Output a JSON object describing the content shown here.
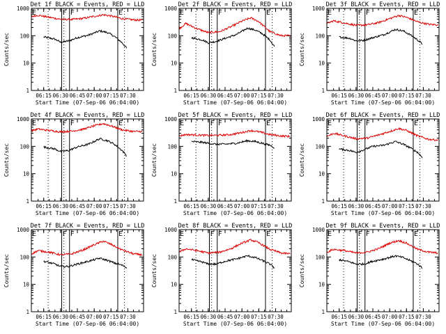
{
  "figure": {
    "start_time_label": "Start Time (07-Sep-06 06:04:00)",
    "ylabel": "Counts/sec"
  },
  "chart_data": [
    {
      "type": "line",
      "title": "Det 1f BLACK = Events, RED = LLD",
      "xlabel": "Start Time (07-Sep-06 06:04:00)",
      "ylabel": "Counts/sec",
      "yscale": "log",
      "ylim": [
        1,
        1000
      ],
      "y_ticks": [
        "1",
        "10",
        "100",
        "1000"
      ],
      "xlim": [
        "06:04",
        "07:44"
      ],
      "x_ticks": [
        "06:15",
        "06:30",
        "06:45",
        "07:00",
        "07:15",
        "07:30"
      ],
      "vertical_markers": [
        {
          "label": "E",
          "time": "06:04"
        },
        {
          "label": "F",
          "time": "06:31"
        },
        {
          "label": "F",
          "time": "06:38"
        },
        {
          "label": "E",
          "time": "07:21"
        }
      ],
      "dotted_markers": [
        "06:19",
        "06:33",
        "07:27"
      ],
      "series": [
        {
          "name": "Events",
          "color": "#000000",
          "x": [
            "06:15",
            "06:25",
            "06:30",
            "06:37",
            "06:45",
            "06:55",
            "07:05",
            "07:12",
            "07:18",
            "07:25",
            "07:29"
          ],
          "y": [
            90,
            75,
            58,
            64,
            85,
            105,
            150,
            130,
            95,
            55,
            35
          ]
        },
        {
          "name": "LLD",
          "color": "#dd0000",
          "x": [
            "06:04",
            "06:10",
            "06:20",
            "06:30",
            "06:40",
            "06:50",
            "07:00",
            "07:08",
            "07:15",
            "07:25",
            "07:35",
            "07:43"
          ],
          "y": [
            500,
            560,
            470,
            400,
            390,
            430,
            510,
            580,
            530,
            420,
            380,
            370
          ]
        }
      ]
    },
    {
      "type": "line",
      "title": "Det 2f BLACK = Events, RED = LLD",
      "xlabel": "Start Time (07-Sep-06 06:04:00)",
      "ylabel": "Counts/sec",
      "yscale": "log",
      "ylim": [
        1,
        1000
      ],
      "y_ticks": [
        "1",
        "10",
        "100",
        "1000"
      ],
      "xlim": [
        "06:04",
        "07:44"
      ],
      "x_ticks": [
        "06:15",
        "06:30",
        "06:45",
        "07:00",
        "07:15",
        "07:30"
      ],
      "vertical_markers": [
        {
          "label": "E",
          "time": "06:04"
        },
        {
          "label": "F",
          "time": "06:31"
        },
        {
          "label": "F",
          "time": "06:38"
        },
        {
          "label": "E",
          "time": "07:21"
        }
      ],
      "dotted_markers": [
        "06:19",
        "06:33",
        "07:27"
      ],
      "series": [
        {
          "name": "Events",
          "color": "#000000",
          "x": [
            "06:15",
            "06:25",
            "06:30",
            "06:37",
            "06:45",
            "06:55",
            "07:05",
            "07:12",
            "07:18",
            "07:25",
            "07:29"
          ],
          "y": [
            85,
            70,
            55,
            62,
            80,
            110,
            190,
            160,
            120,
            70,
            40
          ]
        },
        {
          "name": "LLD",
          "color": "#dd0000",
          "x": [
            "06:04",
            "06:10",
            "06:20",
            "06:30",
            "06:40",
            "06:50",
            "07:00",
            "07:08",
            "07:15",
            "07:25",
            "07:35",
            "07:43"
          ],
          "y": [
            180,
            280,
            180,
            130,
            140,
            210,
            340,
            450,
            330,
            140,
            100,
            100
          ]
        }
      ]
    },
    {
      "type": "line",
      "title": "Det 3f BLACK = Events, RED = LLD",
      "xlabel": "Start Time (07-Sep-06 06:04:00)",
      "ylabel": "Counts/sec",
      "yscale": "log",
      "ylim": [
        1,
        1000
      ],
      "y_ticks": [
        "1",
        "10",
        "100",
        "1000"
      ],
      "xlim": [
        "06:04",
        "07:44"
      ],
      "x_ticks": [
        "06:15",
        "06:30",
        "06:45",
        "07:00",
        "07:15",
        "07:30"
      ],
      "vertical_markers": [
        {
          "label": "E",
          "time": "06:04"
        },
        {
          "label": "F",
          "time": "06:31"
        },
        {
          "label": "F",
          "time": "06:38"
        },
        {
          "label": "E",
          "time": "07:21"
        }
      ],
      "dotted_markers": [
        "06:19",
        "06:33",
        "07:27"
      ],
      "series": [
        {
          "name": "Events",
          "color": "#000000",
          "x": [
            "06:15",
            "06:25",
            "06:30",
            "06:37",
            "06:45",
            "06:55",
            "07:05",
            "07:12",
            "07:18",
            "07:25",
            "07:29"
          ],
          "y": [
            90,
            80,
            65,
            68,
            85,
            110,
            170,
            150,
            110,
            70,
            50
          ]
        },
        {
          "name": "LLD",
          "color": "#dd0000",
          "x": [
            "06:04",
            "06:10",
            "06:20",
            "06:30",
            "06:40",
            "06:50",
            "07:00",
            "07:08",
            "07:15",
            "07:25",
            "07:35",
            "07:43"
          ],
          "y": [
            280,
            350,
            290,
            240,
            250,
            300,
            420,
            550,
            470,
            320,
            260,
            250
          ]
        }
      ]
    },
    {
      "type": "line",
      "title": "Det 4f BLACK = Events, RED = LLD",
      "xlabel": "Start Time (07-Sep-06 06:04:00)",
      "ylabel": "Counts/sec",
      "yscale": "log",
      "ylim": [
        1,
        1000
      ],
      "y_ticks": [
        "1",
        "10",
        "100",
        "1000"
      ],
      "xlim": [
        "06:04",
        "07:44"
      ],
      "x_ticks": [
        "06:15",
        "06:30",
        "06:45",
        "07:00",
        "07:15",
        "07:30"
      ],
      "vertical_markers": [
        {
          "label": "E",
          "time": "06:04"
        },
        {
          "label": "F",
          "time": "06:31"
        },
        {
          "label": "F",
          "time": "06:38"
        },
        {
          "label": "E",
          "time": "07:21"
        }
      ],
      "dotted_markers": [
        "06:19",
        "06:33",
        "07:27"
      ],
      "series": [
        {
          "name": "Events",
          "color": "#000000",
          "x": [
            "06:15",
            "06:25",
            "06:30",
            "06:37",
            "06:45",
            "06:55",
            "07:05",
            "07:12",
            "07:18",
            "07:25",
            "07:29"
          ],
          "y": [
            95,
            80,
            65,
            70,
            95,
            120,
            190,
            160,
            120,
            70,
            45
          ]
        },
        {
          "name": "LLD",
          "color": "#dd0000",
          "x": [
            "06:04",
            "06:10",
            "06:20",
            "06:30",
            "06:40",
            "06:50",
            "07:00",
            "07:08",
            "07:15",
            "07:25",
            "07:35",
            "07:43"
          ],
          "y": [
            370,
            430,
            380,
            340,
            360,
            420,
            560,
            680,
            560,
            400,
            350,
            350
          ]
        }
      ]
    },
    {
      "type": "line",
      "title": "Det 5f BLACK = Events, RED = LLD",
      "xlabel": "Start Time (07-Sep-06 06:04:00)",
      "ylabel": "Counts/sec",
      "yscale": "log",
      "ylim": [
        1,
        1000
      ],
      "y_ticks": [
        "1",
        "10",
        "100",
        "1000"
      ],
      "xlim": [
        "06:04",
        "07:44"
      ],
      "x_ticks": [
        "06:15",
        "06:30",
        "06:45",
        "07:00",
        "07:15",
        "07:30"
      ],
      "vertical_markers": [
        {
          "label": "E",
          "time": "06:04"
        },
        {
          "label": "F",
          "time": "06:31"
        },
        {
          "label": "F",
          "time": "06:38"
        },
        {
          "label": "E",
          "time": "07:21"
        }
      ],
      "dotted_markers": [
        "06:19",
        "06:33",
        "07:27"
      ],
      "series": [
        {
          "name": "Events",
          "color": "#000000",
          "x": [
            "06:15",
            "06:25",
            "06:30",
            "06:37",
            "06:45",
            "06:55",
            "07:05",
            "07:12",
            "07:18",
            "07:25",
            "07:29"
          ],
          "y": [
            150,
            140,
            130,
            120,
            120,
            130,
            160,
            150,
            130,
            110,
            90
          ]
        },
        {
          "name": "LLD",
          "color": "#dd0000",
          "x": [
            "06:04",
            "06:10",
            "06:20",
            "06:30",
            "06:40",
            "06:50",
            "07:00",
            "07:08",
            "07:15",
            "07:25",
            "07:35",
            "07:43"
          ],
          "y": [
            240,
            270,
            260,
            250,
            255,
            270,
            320,
            380,
            340,
            270,
            240,
            230
          ]
        }
      ]
    },
    {
      "type": "line",
      "title": "Det 6f BLACK = Events, RED = LLD",
      "xlabel": "Start Time (07-Sep-06 06:04:00)",
      "ylabel": "Counts/sec",
      "yscale": "log",
      "ylim": [
        1,
        1000
      ],
      "y_ticks": [
        "1",
        "10",
        "100",
        "1000"
      ],
      "xlim": [
        "06:04",
        "07:44"
      ],
      "x_ticks": [
        "06:15",
        "06:30",
        "06:45",
        "07:00",
        "07:15",
        "07:30"
      ],
      "vertical_markers": [
        {
          "label": "E",
          "time": "06:04"
        },
        {
          "label": "F",
          "time": "06:31"
        },
        {
          "label": "F",
          "time": "06:38"
        },
        {
          "label": "E",
          "time": "07:21"
        }
      ],
      "dotted_markers": [
        "06:19",
        "06:33",
        "07:27"
      ],
      "series": [
        {
          "name": "Events",
          "color": "#000000",
          "x": [
            "06:15",
            "06:25",
            "06:30",
            "06:37",
            "06:45",
            "06:55",
            "07:05",
            "07:12",
            "07:18",
            "07:25",
            "07:29"
          ],
          "y": [
            80,
            70,
            60,
            75,
            100,
            110,
            150,
            120,
            90,
            60,
            40
          ]
        },
        {
          "name": "LLD",
          "color": "#dd0000",
          "x": [
            "06:04",
            "06:10",
            "06:20",
            "06:30",
            "06:40",
            "06:50",
            "07:00",
            "07:08",
            "07:15",
            "07:25",
            "07:35",
            "07:43"
          ],
          "y": [
            230,
            300,
            240,
            190,
            200,
            260,
            350,
            450,
            380,
            240,
            180,
            170
          ]
        }
      ]
    },
    {
      "type": "line",
      "title": "Det 7f BLACK = Events, RED = LLD",
      "xlabel": "Start Time (07-Sep-06 06:04:00)",
      "ylabel": "Counts/sec",
      "yscale": "log",
      "ylim": [
        1,
        1000
      ],
      "y_ticks": [
        "1",
        "10",
        "100",
        "1000"
      ],
      "xlim": [
        "06:04",
        "07:44"
      ],
      "x_ticks": [
        "06:15",
        "06:30",
        "06:45",
        "07:00",
        "07:15",
        "07:30"
      ],
      "vertical_markers": [
        {
          "label": "E",
          "time": "06:04"
        },
        {
          "label": "F",
          "time": "06:31"
        },
        {
          "label": "F",
          "time": "06:38"
        },
        {
          "label": "E",
          "time": "07:21"
        }
      ],
      "dotted_markers": [
        "06:19",
        "06:33",
        "07:27"
      ],
      "series": [
        {
          "name": "Events",
          "color": "#000000",
          "x": [
            "06:15",
            "06:25",
            "06:30",
            "06:37",
            "06:45",
            "06:55",
            "07:05",
            "07:12",
            "07:18",
            "07:25",
            "07:29"
          ],
          "y": [
            70,
            55,
            45,
            45,
            55,
            70,
            90,
            75,
            60,
            50,
            40
          ]
        },
        {
          "name": "LLD",
          "color": "#dd0000",
          "x": [
            "06:04",
            "06:10",
            "06:20",
            "06:30",
            "06:40",
            "06:50",
            "07:00",
            "07:08",
            "07:15",
            "07:25",
            "07:35",
            "07:43"
          ],
          "y": [
            130,
            170,
            150,
            120,
            130,
            180,
            280,
            380,
            290,
            180,
            130,
            120
          ]
        }
      ]
    },
    {
      "type": "line",
      "title": "Det 8f BLACK = Events, RED = LLD",
      "xlabel": "Start Time (07-Sep-06 06:04:00)",
      "ylabel": "Counts/sec",
      "yscale": "log",
      "ylim": [
        1,
        1000
      ],
      "y_ticks": [
        "1",
        "10",
        "100",
        "1000"
      ],
      "xlim": [
        "06:04",
        "07:44"
      ],
      "x_ticks": [
        "06:15",
        "06:30",
        "06:45",
        "07:00",
        "07:15",
        "07:30"
      ],
      "vertical_markers": [
        {
          "label": "E",
          "time": "06:04"
        },
        {
          "label": "F",
          "time": "06:31"
        },
        {
          "label": "F",
          "time": "06:38"
        },
        {
          "label": "E",
          "time": "07:21"
        }
      ],
      "dotted_markers": [
        "06:19",
        "06:33",
        "07:27"
      ],
      "series": [
        {
          "name": "Events",
          "color": "#000000",
          "x": [
            "06:15",
            "06:25",
            "06:30",
            "06:37",
            "06:45",
            "06:55",
            "07:05",
            "07:12",
            "07:18",
            "07:25",
            "07:29"
          ],
          "y": [
            80,
            65,
            55,
            55,
            70,
            85,
            110,
            95,
            75,
            55,
            40
          ]
        },
        {
          "name": "LLD",
          "color": "#dd0000",
          "x": [
            "06:04",
            "06:10",
            "06:20",
            "06:30",
            "06:40",
            "06:50",
            "07:00",
            "07:08",
            "07:15",
            "07:25",
            "07:35",
            "07:43"
          ],
          "y": [
            150,
            200,
            170,
            140,
            150,
            200,
            320,
            420,
            330,
            190,
            140,
            130
          ]
        }
      ]
    },
    {
      "type": "line",
      "title": "Det 9f BLACK = Events, RED = LLD",
      "xlabel": "Start Time (07-Sep-06 06:04:00)",
      "ylabel": "Counts/sec",
      "yscale": "log",
      "ylim": [
        1,
        1000
      ],
      "y_ticks": [
        "1",
        "10",
        "100",
        "1000"
      ],
      "xlim": [
        "06:04",
        "07:44"
      ],
      "x_ticks": [
        "06:15",
        "06:30",
        "06:45",
        "07:00",
        "07:15",
        "07:30"
      ],
      "vertical_markers": [
        {
          "label": "E",
          "time": "06:04"
        },
        {
          "label": "F",
          "time": "06:31"
        },
        {
          "label": "F",
          "time": "06:38"
        },
        {
          "label": "E",
          "time": "07:21"
        }
      ],
      "dotted_markers": [
        "06:19",
        "06:33",
        "07:27"
      ],
      "series": [
        {
          "name": "Events",
          "color": "#000000",
          "x": [
            "06:15",
            "06:25",
            "06:30",
            "06:37",
            "06:45",
            "06:55",
            "07:05",
            "07:12",
            "07:18",
            "07:25",
            "07:29"
          ],
          "y": [
            80,
            65,
            55,
            55,
            70,
            85,
            110,
            95,
            75,
            55,
            40
          ]
        },
        {
          "name": "LLD",
          "color": "#dd0000",
          "x": [
            "06:04",
            "06:10",
            "06:20",
            "06:30",
            "06:40",
            "06:50",
            "07:00",
            "07:08",
            "07:15",
            "07:25",
            "07:35",
            "07:43"
          ],
          "y": [
            150,
            190,
            170,
            140,
            150,
            200,
            320,
            400,
            320,
            190,
            150,
            140
          ]
        }
      ]
    }
  ]
}
